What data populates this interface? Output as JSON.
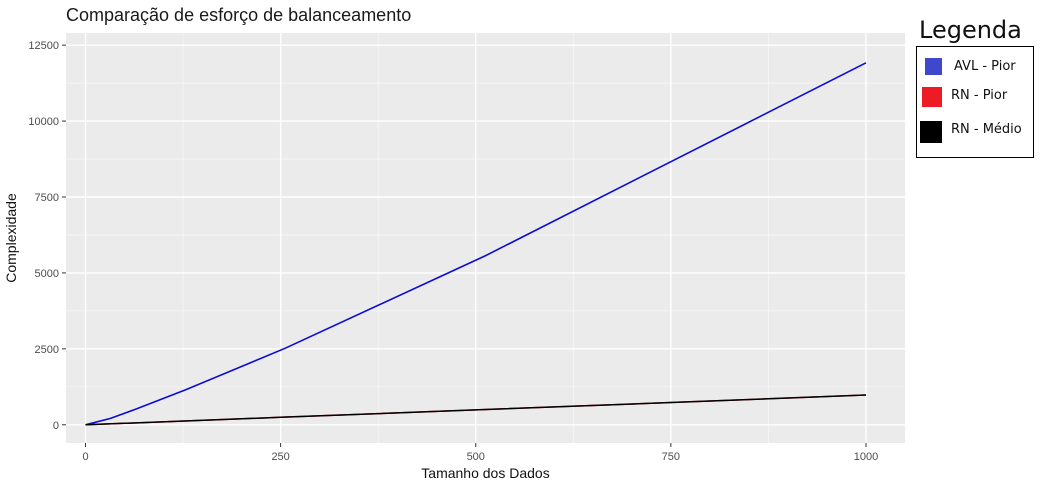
{
  "chart_data": {
    "type": "line",
    "title": "Comparação de esforço de balanceamento",
    "xlabel": "Tamanho dos Dados",
    "ylabel": "Complexidade",
    "xlim": [
      -25,
      1050
    ],
    "ylim": [
      -600,
      12900
    ],
    "x_ticks": [
      0,
      250,
      500,
      750,
      1000
    ],
    "x_tick_labels": [
      "0",
      "250",
      "500",
      "750",
      "1000"
    ],
    "y_ticks": [
      0,
      2500,
      5000,
      7500,
      10000,
      12500
    ],
    "y_tick_labels": [
      "0",
      "2500",
      "5000",
      "7500",
      "10000",
      "12500"
    ],
    "grid": true,
    "series": [
      {
        "name": "AVL - Pior",
        "color": "#0b0bd6",
        "x": [
          0,
          32,
          64,
          128,
          256,
          512,
          1000
        ],
        "y": [
          0,
          210,
          510,
          1150,
          2520,
          5560,
          11920
        ]
      },
      {
        "name": "RN - Pior",
        "color": "#e3232c",
        "x": [
          0,
          250,
          500,
          750,
          1000
        ],
        "y": [
          0,
          245,
          490,
          735,
          980
        ]
      },
      {
        "name": "RN - Médio",
        "color": "#000000",
        "x": [
          0,
          250,
          500,
          750,
          1000
        ],
        "y": [
          0,
          245,
          490,
          735,
          980
        ]
      }
    ],
    "legend": {
      "title": "Legenda",
      "placement": "right",
      "entries": [
        {
          "label": "AVL - Pior",
          "color": "#3f48cc"
        },
        {
          "label": "RN - Pior",
          "color": "#ed1c24"
        },
        {
          "label": "RN - Médio",
          "color": "#000000"
        }
      ]
    }
  }
}
